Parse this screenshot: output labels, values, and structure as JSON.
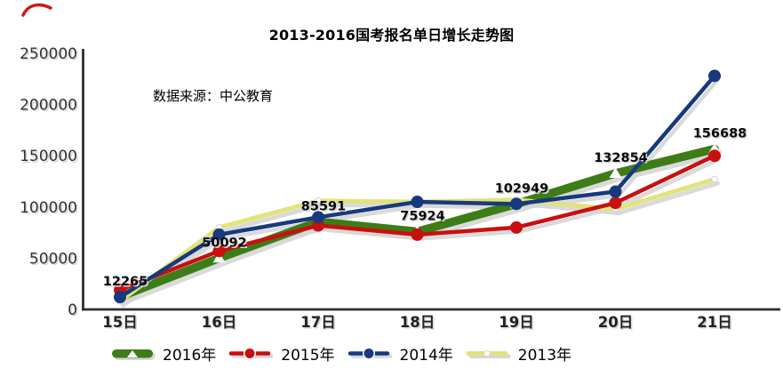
{
  "title": "2013-2016国考报名单日增长走势图",
  "source_note": "数据来源：中公教育",
  "chart_data": {
    "type": "line",
    "categories": [
      "15日",
      "16日",
      "17日",
      "18日",
      "19日",
      "20日",
      "21日"
    ],
    "series": [
      {
        "name": "2016年",
        "color": "#3E7C18",
        "marker": "triangle",
        "line_width": 9.5,
        "labeled": true,
        "values": [
          12265,
          50092,
          85591,
          75924,
          102949,
          132854,
          156688
        ]
      },
      {
        "name": "2015年",
        "color": "#C90F0F",
        "marker": "circle",
        "line_width": 4.5,
        "labeled": false,
        "values": [
          19000,
          57000,
          82000,
          73000,
          80000,
          104000,
          150000
        ]
      },
      {
        "name": "2014年",
        "color": "#17397E",
        "marker": "circle",
        "line_width": 4.5,
        "labeled": false,
        "values": [
          12000,
          73000,
          90000,
          105000,
          103000,
          115000,
          228000
        ]
      },
      {
        "name": "2013年",
        "color": "#E2E37B",
        "marker": "white-dot",
        "line_width": 5,
        "labeled": false,
        "values": [
          8000,
          80000,
          106000,
          105000,
          107000,
          98000,
          127000
        ]
      }
    ],
    "ylim": [
      0,
      250000
    ],
    "yticks": [
      0,
      50000,
      100000,
      150000,
      200000,
      250000
    ],
    "grid": false,
    "legend_position": "bottom",
    "data_labels_series": "2016年",
    "axis_color": "#2e2e2e",
    "tick_text_color": "#333333",
    "shadow_color": "#d6d6d6"
  }
}
